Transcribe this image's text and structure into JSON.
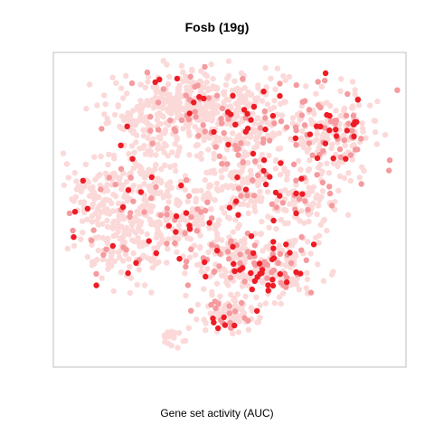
{
  "chart_data": {
    "type": "scatter",
    "title": "Fosb (19g)",
    "xlabel": "Gene set activity (AUC)",
    "ylabel": "",
    "grid": false,
    "axes_ticks": false,
    "colors": {
      "low": "#fcd9d9",
      "mid": "#f59a9e",
      "high": "#ee1c25",
      "frame": "#bfbfbf"
    },
    "clusters": [
      {
        "x": -18,
        "y": 25,
        "sx": 10,
        "sy": 8,
        "n": 240,
        "hot": 0.12
      },
      {
        "x": -5,
        "y": 30,
        "sx": 12,
        "sy": 6,
        "n": 220,
        "hot": 0.1
      },
      {
        "x": 2,
        "y": 22,
        "sx": 8,
        "sy": 6,
        "n": 150,
        "hot": 0.25
      },
      {
        "x": 28,
        "y": 20,
        "sx": 9,
        "sy": 9,
        "n": 220,
        "hot": 0.35
      },
      {
        "x": -38,
        "y": 2,
        "sx": 4,
        "sy": 5,
        "n": 50,
        "hot": 0.05
      },
      {
        "x": -25,
        "y": 5,
        "sx": 8,
        "sy": 6,
        "n": 140,
        "hot": 0.1
      },
      {
        "x": -30,
        "y": -12,
        "sx": 8,
        "sy": 8,
        "n": 170,
        "hot": 0.1
      },
      {
        "x": -12,
        "y": -5,
        "sx": 8,
        "sy": 7,
        "n": 130,
        "hot": 0.15
      },
      {
        "x": 4,
        "y": 5,
        "sx": 7,
        "sy": 7,
        "n": 160,
        "hot": 0.2
      },
      {
        "x": 20,
        "y": 0,
        "sx": 6,
        "sy": 6,
        "n": 90,
        "hot": 0.2
      },
      {
        "x": 2,
        "y": -18,
        "sx": 10,
        "sy": 6,
        "n": 200,
        "hot": 0.3
      },
      {
        "x": 14,
        "y": -20,
        "sx": 6,
        "sy": 5,
        "n": 90,
        "hot": 0.35
      },
      {
        "x": 0,
        "y": -33,
        "sx": 6,
        "sy": 4,
        "n": 90,
        "hot": 0.25
      },
      {
        "x": -16,
        "y": -40,
        "sx": 2,
        "sy": 1.5,
        "n": 18,
        "hot": 0.0
      }
    ],
    "xlim": [
      -45,
      45
    ],
    "ylim": [
      -45,
      40
    ]
  }
}
